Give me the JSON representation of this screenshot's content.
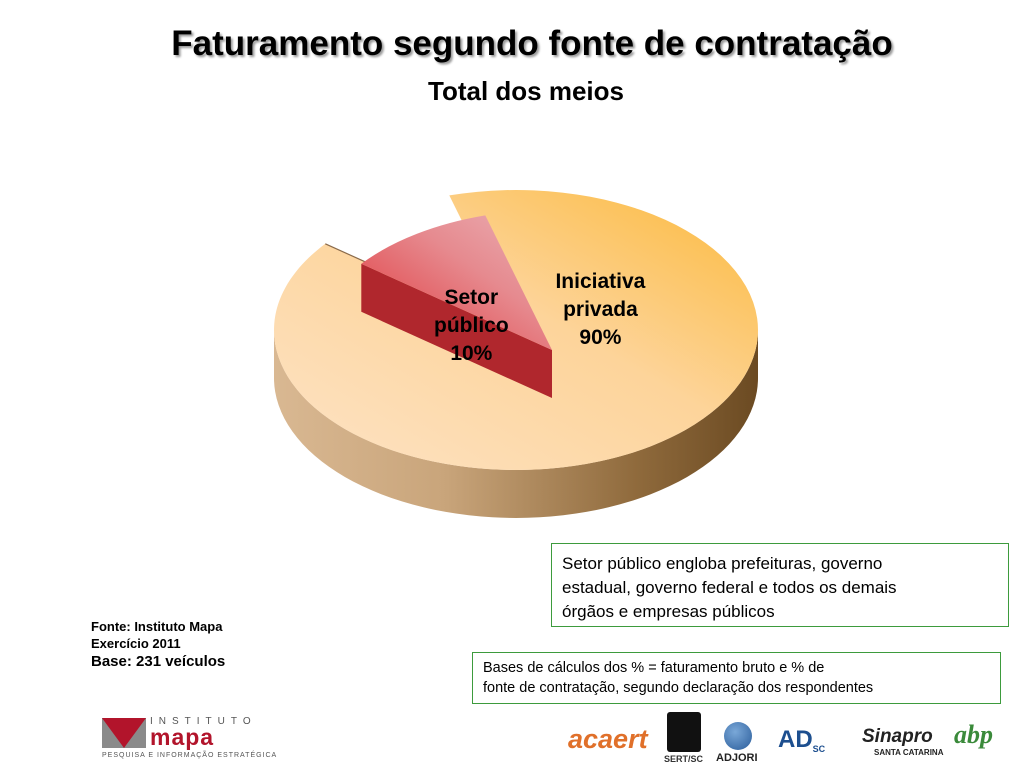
{
  "chart_data": {
    "type": "pie",
    "title": "Faturamento segundo fonte de contratação",
    "subtitle": "Total dos meios",
    "slices": [
      {
        "label_lines": [
          "Iniciativa",
          "privada"
        ],
        "value": 90,
        "value_label": "90%",
        "color": "#fbb93a",
        "color_light": "#fde3c6"
      },
      {
        "label_lines": [
          "Setor",
          "público"
        ],
        "value": 10,
        "value_label": "10%",
        "color": "#e0262a",
        "color_light": "#e7a3a9",
        "exploded": true
      }
    ]
  },
  "notes": {
    "definition": [
      "Setor público engloba prefeituras, governo",
      "estadual, governo federal e todos os demais",
      "órgãos e empresas públicos"
    ],
    "bases": [
      "Bases de cálculos dos % = faturamento bruto e % de",
      "fonte de contratação, segundo declaração dos respondentes"
    ]
  },
  "source": {
    "line1": "Fonte: Instituto Mapa",
    "line2": "Exercício 2011",
    "line3": "Base: 231 veículos"
  },
  "logos": {
    "mapa": {
      "top": "INSTITUTO",
      "word": "mapa",
      "bottom": "PESQUISA E INFORMAÇÃO ESTRATÉGICA"
    },
    "partners": {
      "acaert": "acaert",
      "sert": "SERT/SC",
      "adjori": "ADJORI",
      "adi": "AD",
      "adi_sc": "SC",
      "sinapro": "Sinapro",
      "sinapro_sub": "SANTA CATARINA",
      "abp": "abp"
    }
  }
}
